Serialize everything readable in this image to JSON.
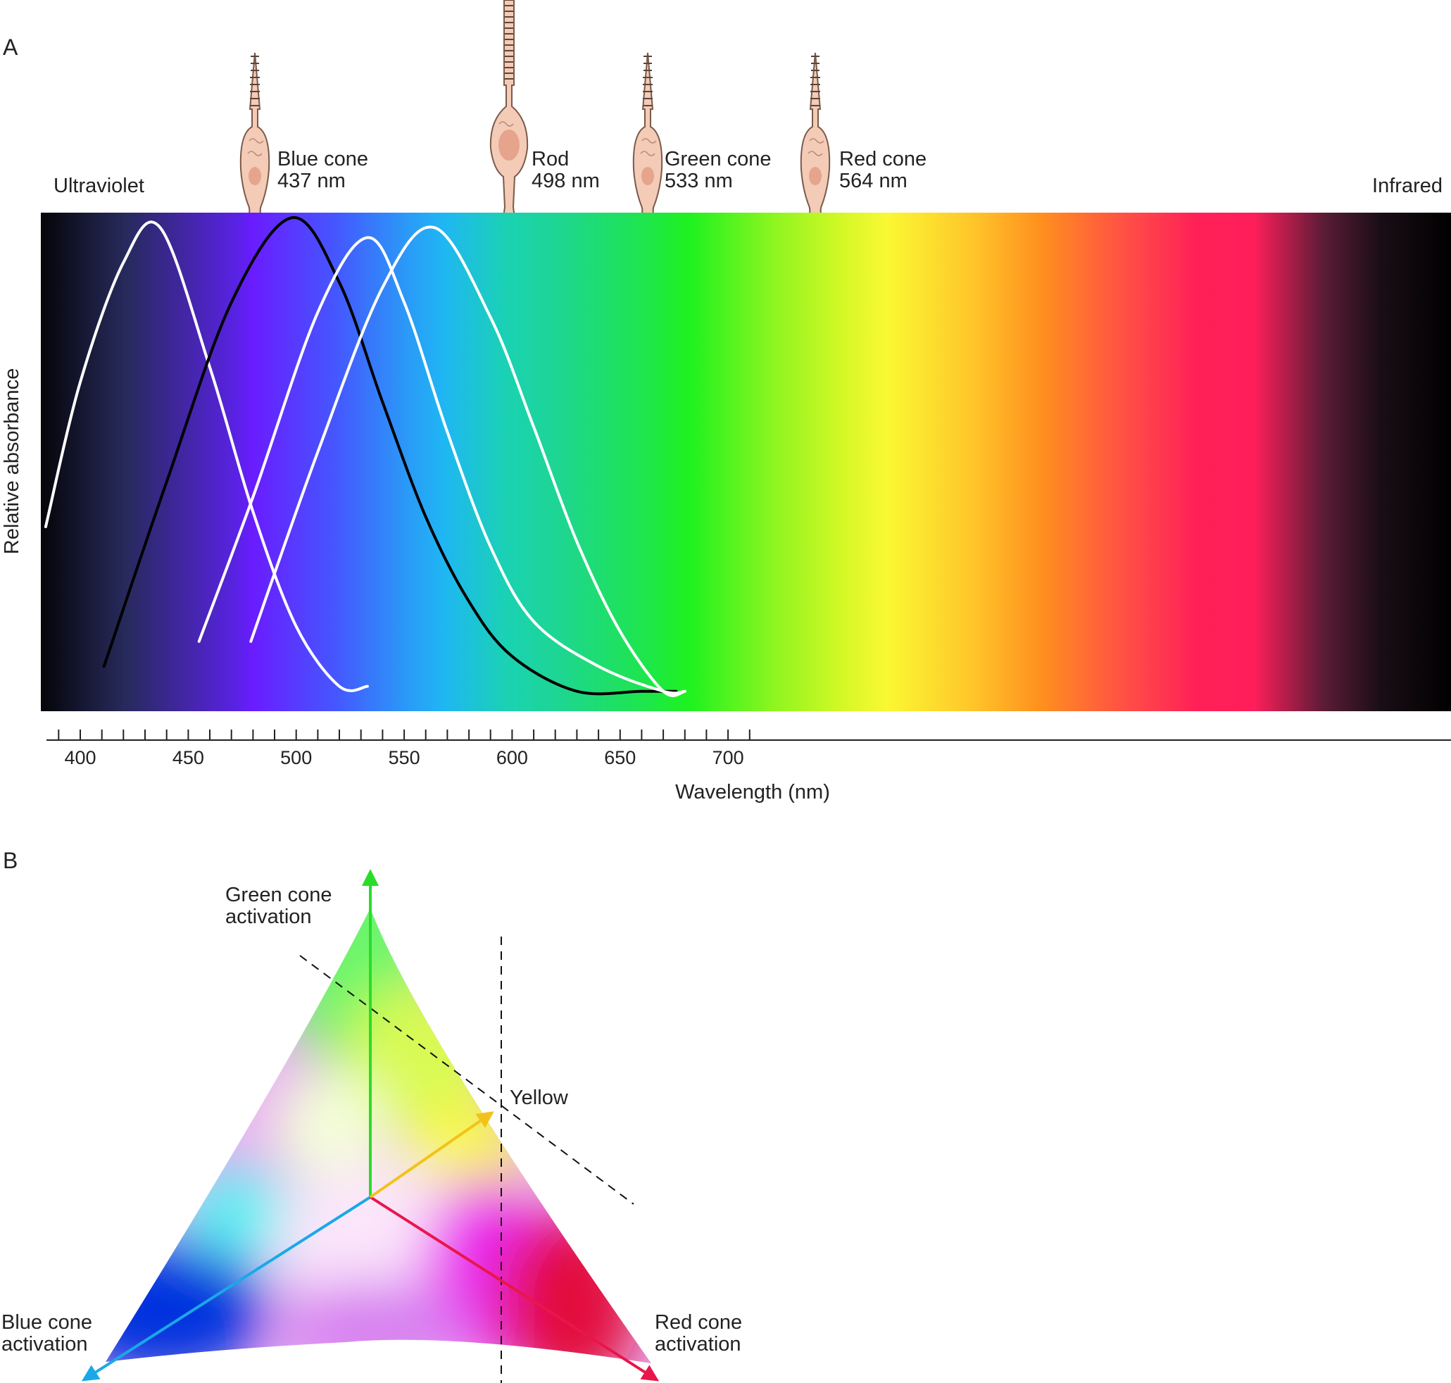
{
  "panel_a": {
    "label": "A",
    "left_label": "Ultraviolet",
    "right_label": "Infrared",
    "cells": [
      {
        "name": "Blue cone",
        "peak": "437 nm"
      },
      {
        "name": "Rod",
        "peak": "498 nm"
      },
      {
        "name": "Green cone",
        "peak": "533 nm"
      },
      {
        "name": "Red cone",
        "peak": "564 nm"
      }
    ],
    "xlabel": "Wavelength (nm)",
    "ylabel": "Relative absorbance",
    "x_ticks": [
      "400",
      "450",
      "500",
      "550",
      "600",
      "650",
      "700"
    ],
    "colors": {
      "blue_cone_curve": "#ffffff",
      "rod_curve": "#000000",
      "green_cone_curve": "#ffffff",
      "red_cone_curve": "#ffffff",
      "cell_fill": "#f3cbb6",
      "cell_stroke": "#7a5a4a"
    }
  },
  "panel_b": {
    "label": "B",
    "axes": [
      {
        "line1": "Green cone",
        "line2": "activation",
        "color": "#2adc2a"
      },
      {
        "line1": "Blue cone",
        "line2": "activation",
        "color": "#1aa8e8"
      },
      {
        "line1": "Red cone",
        "line2": "activation",
        "color": "#e8164a"
      }
    ],
    "yellow_label": "Yellow",
    "yellow_color": "#f3c21a"
  },
  "chart_data": {
    "type": "line",
    "title": "",
    "xlabel": "Wavelength (nm)",
    "ylabel": "Relative absorbance",
    "xlim": [
      380,
      710
    ],
    "ylim": [
      0,
      1
    ],
    "series": [
      {
        "name": "Blue cone",
        "peak_nm": 437,
        "x": [
          384,
          400,
          420,
          437,
          460,
          480,
          500,
          520,
          533
        ],
        "y": [
          0.37,
          0.66,
          0.9,
          0.97,
          0.69,
          0.4,
          0.17,
          0.05,
          0.05
        ]
      },
      {
        "name": "Rod",
        "peak_nm": 498,
        "x": [
          411,
          440,
          470,
          498,
          520,
          540,
          560,
          580,
          600,
          630,
          660,
          676
        ],
        "y": [
          0.09,
          0.46,
          0.82,
          0.99,
          0.86,
          0.62,
          0.39,
          0.22,
          0.11,
          0.04,
          0.04,
          0.04
        ]
      },
      {
        "name": "Green cone",
        "peak_nm": 533,
        "x": [
          455,
          480,
          510,
          533,
          550,
          570,
          590,
          610,
          640,
          670,
          680
        ],
        "y": [
          0.14,
          0.43,
          0.8,
          0.95,
          0.82,
          0.56,
          0.33,
          0.18,
          0.09,
          0.04,
          0.04
        ]
      },
      {
        "name": "Red cone",
        "peak_nm": 564,
        "x": [
          479,
          510,
          540,
          564,
          590,
          610,
          630,
          650,
          670,
          680
        ],
        "y": [
          0.14,
          0.52,
          0.85,
          0.97,
          0.79,
          0.57,
          0.34,
          0.16,
          0.04,
          0.04
        ]
      }
    ]
  }
}
